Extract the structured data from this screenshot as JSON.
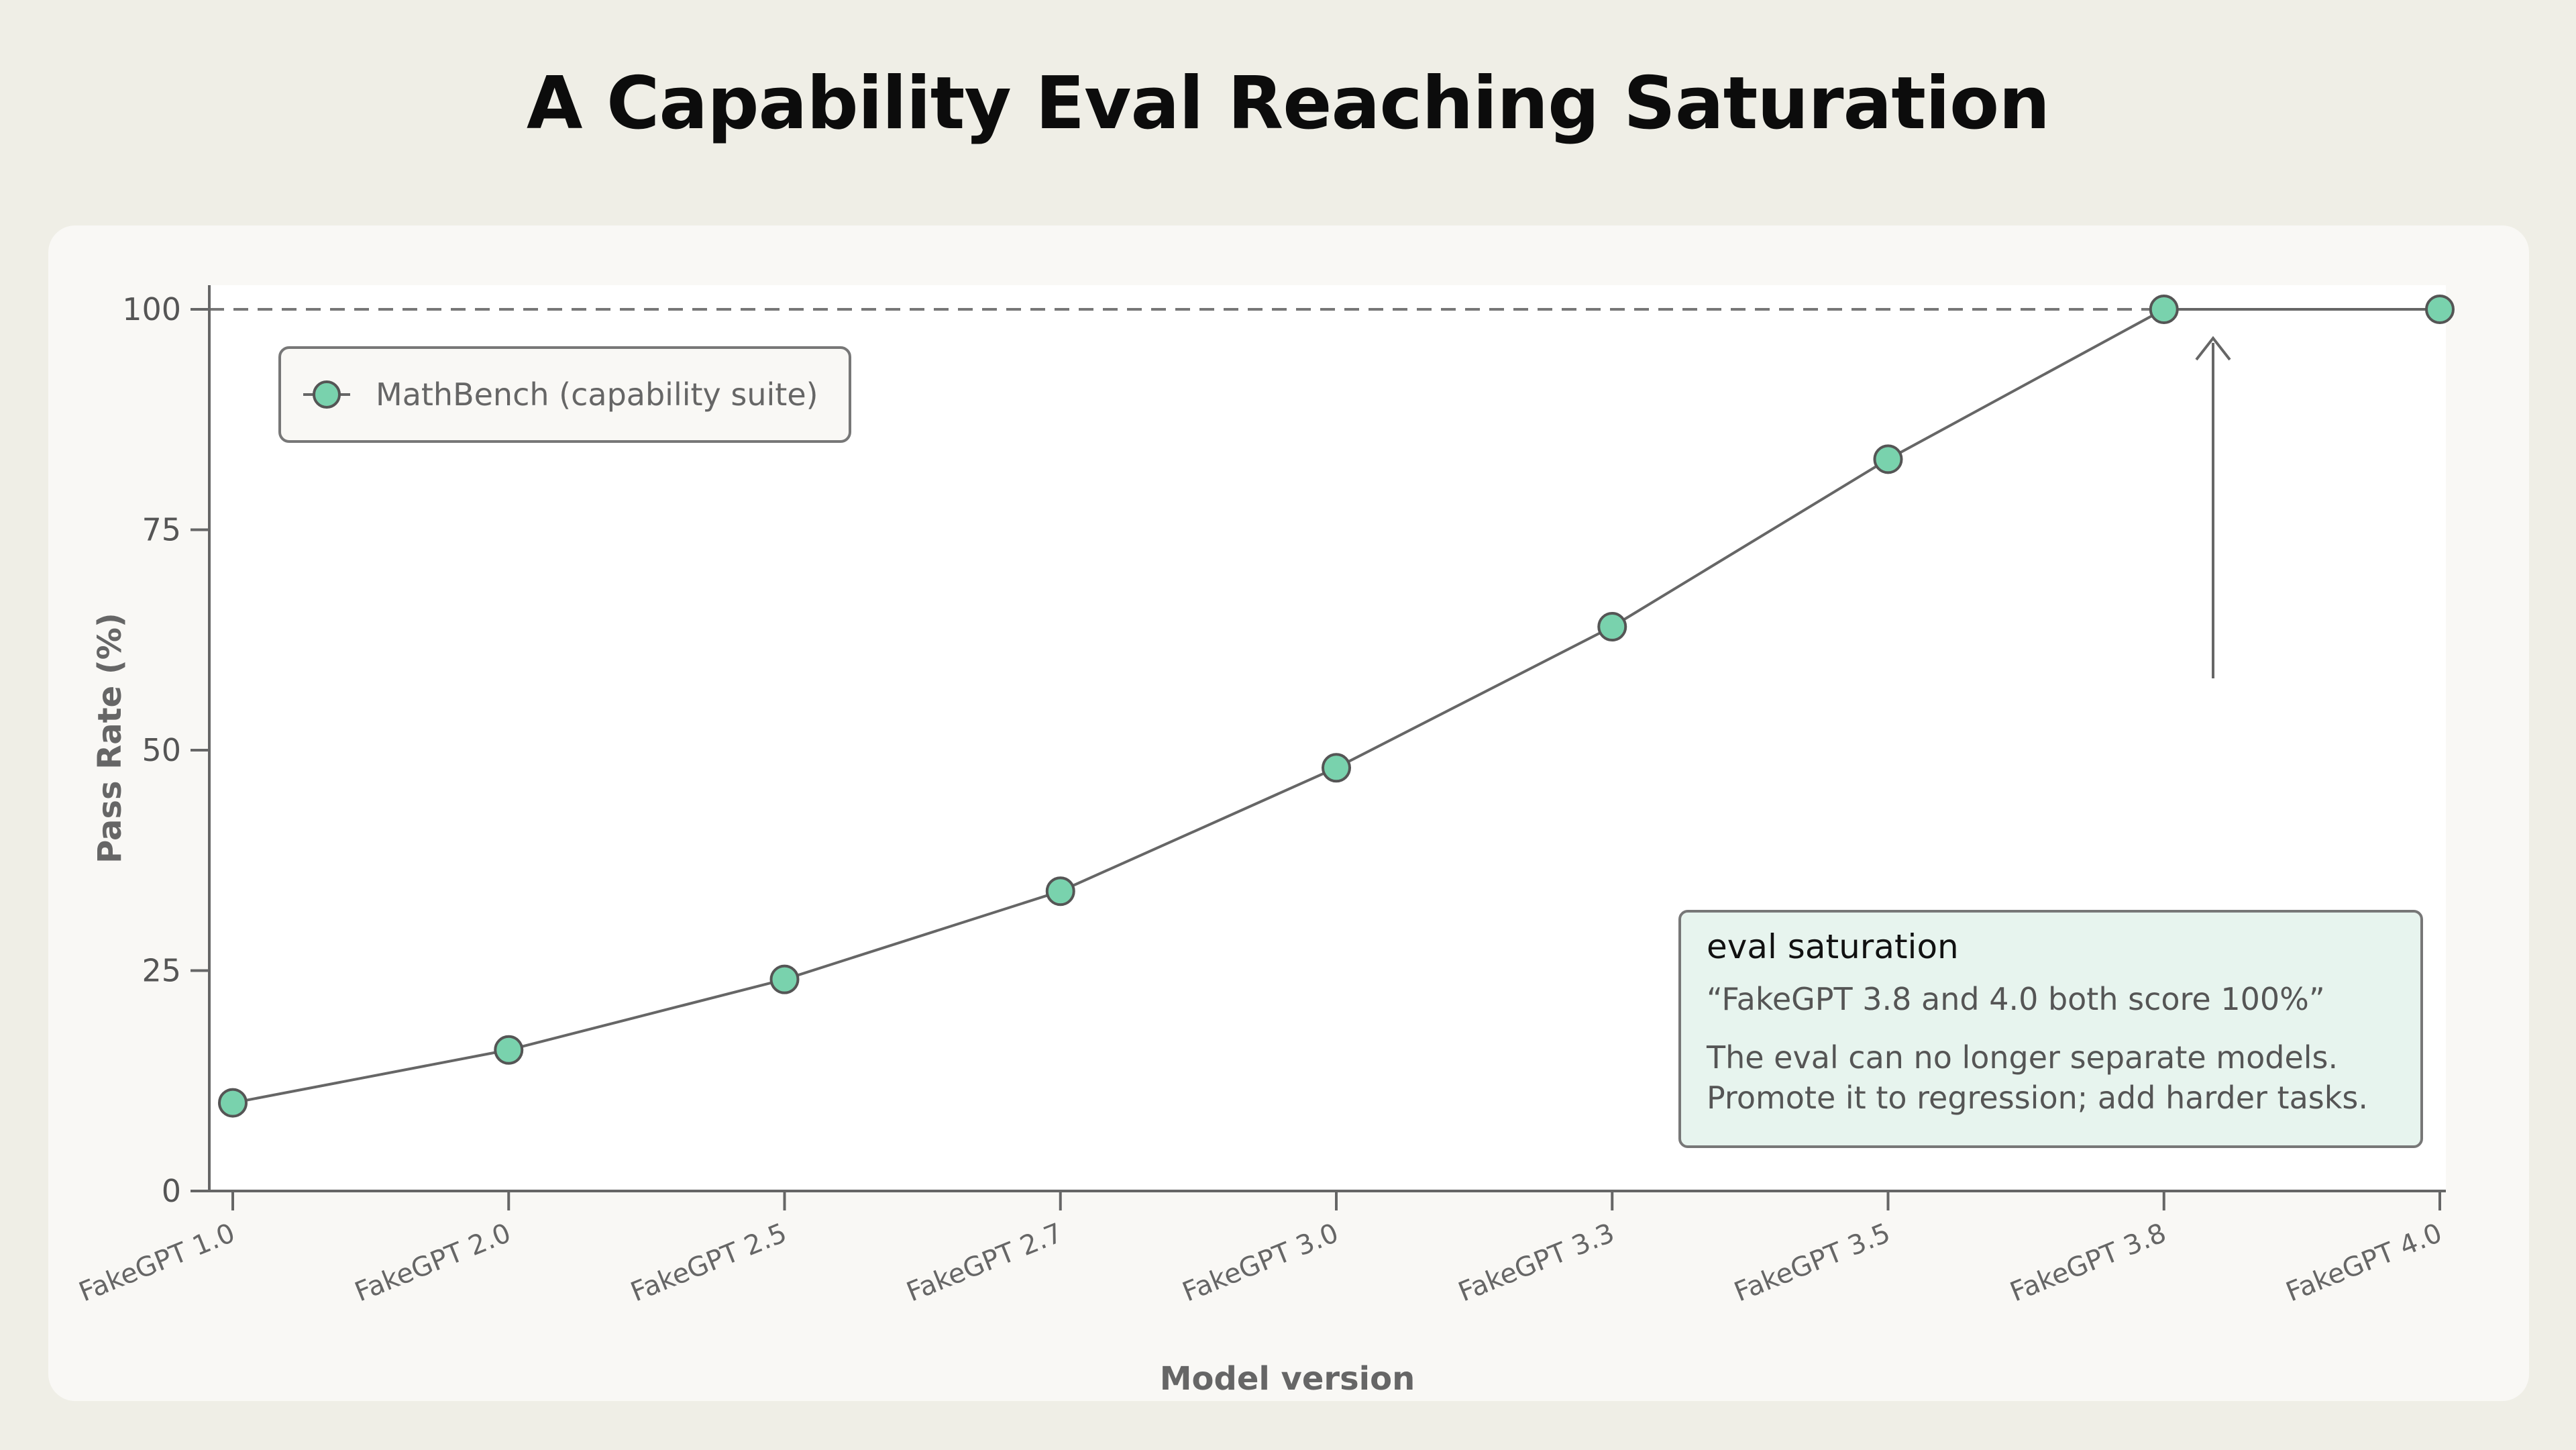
{
  "chart_data": {
    "type": "line",
    "title": "A Capability Eval Reaching Saturation",
    "xlabel": "Model version",
    "ylabel": "Pass Rate (%)",
    "categories": [
      "FakeGPT 1.0",
      "FakeGPT 2.0",
      "FakeGPT 2.5",
      "FakeGPT 2.7",
      "FakeGPT 3.0",
      "FakeGPT 3.3",
      "FakeGPT 3.5",
      "FakeGPT 3.8",
      "FakeGPT 4.0"
    ],
    "series": [
      {
        "name": "MathBench (capability suite)",
        "values": [
          10,
          16,
          24,
          34,
          48,
          64,
          83,
          100,
          100
        ]
      }
    ],
    "ylim": [
      0,
      100
    ],
    "yticks": [
      "0",
      "25",
      "50",
      "75",
      "100"
    ],
    "reference_line": 100,
    "grid": false,
    "legend_position": "top-left",
    "annotation": {
      "title": "eval saturation",
      "quote": "“FakeGPT 3.8 and 4.0 both score 100%”",
      "body_line1": "The eval can no longer separate models.",
      "body_line2": "Promote it to regression; add harder tasks."
    },
    "colors": {
      "marker": "#79d2ad",
      "line": "#666666",
      "callout_bg": "#e7f4ee"
    }
  }
}
